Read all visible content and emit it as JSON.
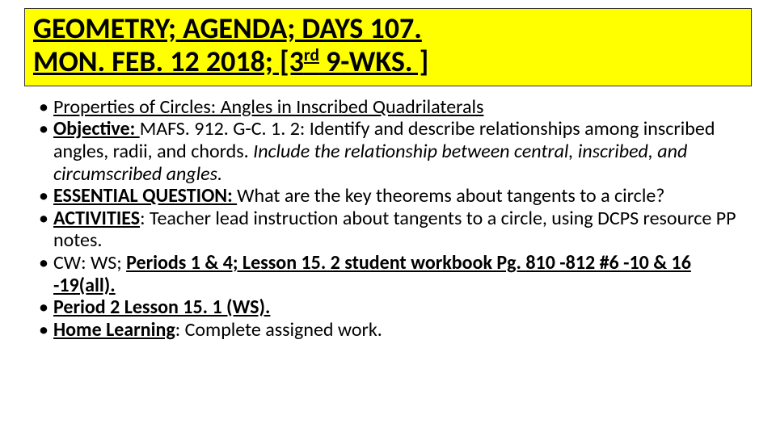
{
  "title": {
    "line1": "GEOMETRY; AGENDA; DAYS 107. ",
    "line2_pre": "MON.  FEB. 12 2018; [3",
    "line2_sup": "rd",
    "line2_post": "  9-WKS. ]"
  },
  "bullets": {
    "b1_text": "Properties of Circles: Angles in Inscribed Quadrilaterals",
    "b2_label": " Objective:  ",
    "b2_text1": "MAFS. 912. G-C. 1. 2: Identify and describe relationships among inscribed angles, radii, and chords. ",
    "b2_text2": "Include the relationship between central, inscribed, and circumscribed angles.",
    "b3_label": "ESSENTIAL QUESTION: ",
    "b3_text": "What are the key theorems about tangents to a circle?",
    "b4_label": "ACTIVITIES",
    "b4_text": ": Teacher lead instruction about tangents to a circle, using DCPS resource PP notes.",
    "b5_text1": "CW: WS; ",
    "b5_text2": "Periods 1 & 4; Lesson 15. 2 student workbook Pg. 810 -812 #6 -10 & 16 -19(all).",
    "b6_text": "Period 2 Lesson 15. 1 (WS).",
    "b7_label": "Home Learning",
    "b7_text": ": Complete assigned work."
  },
  "style": {
    "highlight_bg": "#ffff00",
    "text_color": "#000000",
    "title_fontsize": 36,
    "body_fontsize": 24
  }
}
